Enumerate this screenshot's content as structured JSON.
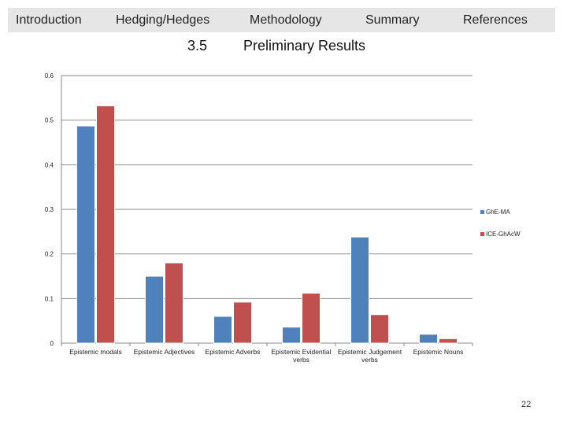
{
  "nav": {
    "items": [
      "Introduction",
      "Hedging/Hedges",
      "Methodology",
      "Summary",
      "References"
    ],
    "bar_color": "#e6e6e6"
  },
  "header": {
    "section_number": "3.5",
    "title": "Preliminary Results"
  },
  "page_number": "22",
  "chart_data": {
    "type": "bar",
    "title": "",
    "xlabel": "",
    "ylabel": "",
    "ylim": [
      0,
      0.6
    ],
    "yticks": [
      "0",
      "0.1",
      "0.2",
      "0.3",
      "0.4",
      "0.5",
      "0.6"
    ],
    "ytick_values": [
      0,
      0.1,
      0.2,
      0.3,
      0.4,
      0.5,
      0.6
    ],
    "grid": true,
    "legend_position": "right",
    "categories": [
      [
        "Epistemic modals"
      ],
      [
        "Epistemic Adjectives"
      ],
      [
        "Epistemic Adverbs"
      ],
      [
        "Epistemic Evidential",
        "verbs"
      ],
      [
        "Epistemic Judgement",
        "verbs"
      ],
      [
        "Epistemic Nouns"
      ]
    ],
    "series": [
      {
        "name": "GhE-MA",
        "color": "#4f81bd",
        "values": [
          0.487,
          0.15,
          0.06,
          0.036,
          0.238,
          0.02
        ]
      },
      {
        "name": "ICE-GhAcW",
        "color": "#c0504d",
        "values": [
          0.532,
          0.18,
          0.092,
          0.112,
          0.064,
          0.01
        ]
      }
    ]
  }
}
